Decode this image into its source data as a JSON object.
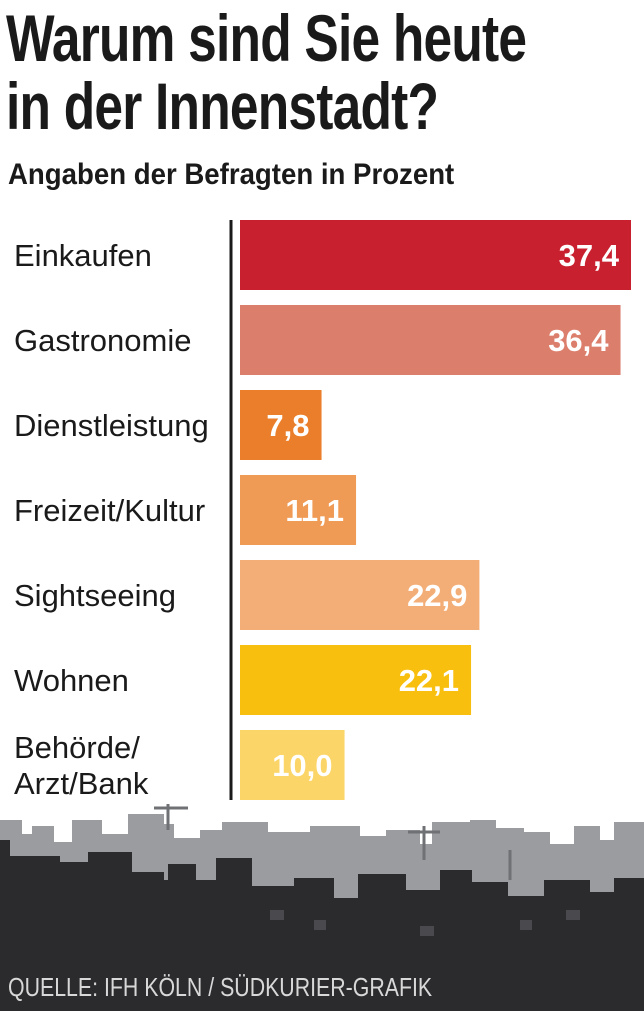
{
  "header": {
    "title": "Warum sind Sie heute\nin der Innenstadt?",
    "subtitle": "Angaben der Befragten in Prozent"
  },
  "chart_data": {
    "type": "bar",
    "orientation": "horizontal",
    "title": "Warum sind Sie heute in der Innenstadt?",
    "subtitle": "Angaben der Befragten in Prozent",
    "categories": [
      "Einkaufen",
      "Gastronomie",
      "Dienstleistung",
      "Freizeit/Kultur",
      "Sightseeing",
      "Wohnen",
      "Behörde/\nArzt/Bank"
    ],
    "values": [
      37.4,
      36.4,
      7.8,
      11.1,
      22.9,
      22.1,
      10.0
    ],
    "value_labels": [
      "37,4",
      "36,4",
      "7,8",
      "11,1",
      "22,9",
      "22,1",
      "10,0"
    ],
    "colors": [
      "#c8202e",
      "#dc7e6c",
      "#ea7e2a",
      "#ef9a55",
      "#f3ae78",
      "#f8bf0f",
      "#fbd568"
    ],
    "xlim": [
      0,
      37.4
    ],
    "grid": false
  },
  "source": "QUELLE: IFH KÖLN / SÜDKURIER-GRAFIK"
}
